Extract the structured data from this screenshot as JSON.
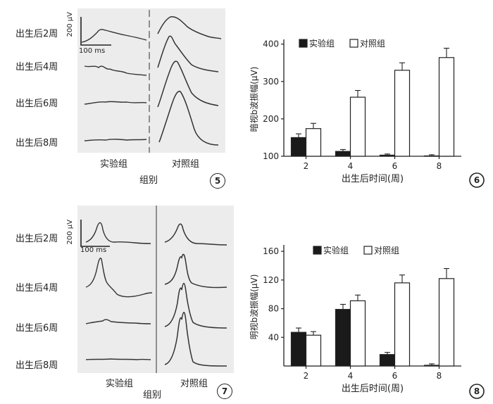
{
  "panel5": {
    "rows": [
      "出生后2周",
      "出生后4周",
      "出生后6周",
      "出生后8周"
    ],
    "scale_uv": "200 μV",
    "scale_ms": "100 ms",
    "group_exp": "实验组",
    "group_ctrl": "对照组",
    "group_axis": "组别",
    "fig_num": "5"
  },
  "panel7": {
    "rows": [
      "出生后2周",
      "出生后4周",
      "出生后6周",
      "出生后8周"
    ],
    "scale_uv": "200 μV",
    "scale_ms": "100 ms",
    "group_exp": "实验组",
    "group_ctrl": "对照组",
    "group_axis": "组别",
    "fig_num": "7"
  },
  "chart_data": [
    {
      "type": "bar",
      "fig_num": "6",
      "categories": [
        "2",
        "4",
        "6",
        "8"
      ],
      "series": [
        {
          "name": "实验组",
          "color": "#1a1a1a",
          "values": [
            150,
            113,
            103,
            101
          ],
          "errors": [
            10,
            5,
            3,
            3
          ]
        },
        {
          "name": "对照组",
          "color": "#ffffff",
          "values": [
            174,
            258,
            330,
            364
          ],
          "errors": [
            14,
            18,
            20,
            25
          ]
        }
      ],
      "yticks": [
        "100",
        "200",
        "300",
        "400"
      ],
      "ylim": [
        100,
        405
      ],
      "xlabel": "出生后时间(周)",
      "ylabel": "暗视b波振幅(μV)",
      "legend_position": "top"
    },
    {
      "type": "bar",
      "fig_num": "8",
      "categories": [
        "2",
        "4",
        "6",
        "8"
      ],
      "series": [
        {
          "name": "实验组",
          "color": "#1a1a1a",
          "values": [
            47,
            79,
            16,
            1
          ],
          "errors": [
            6,
            7,
            3,
            2
          ]
        },
        {
          "name": "对照组",
          "color": "#ffffff",
          "values": [
            43,
            91,
            116,
            122
          ],
          "errors": [
            5,
            8,
            11,
            14
          ]
        }
      ],
      "yticks": [
        "40",
        "80",
        "120",
        "160"
      ],
      "ylim": [
        0,
        165
      ],
      "xlabel": "出生后时间(周)",
      "ylabel": "明视b波振幅(μV)",
      "legend_position": "top"
    }
  ]
}
